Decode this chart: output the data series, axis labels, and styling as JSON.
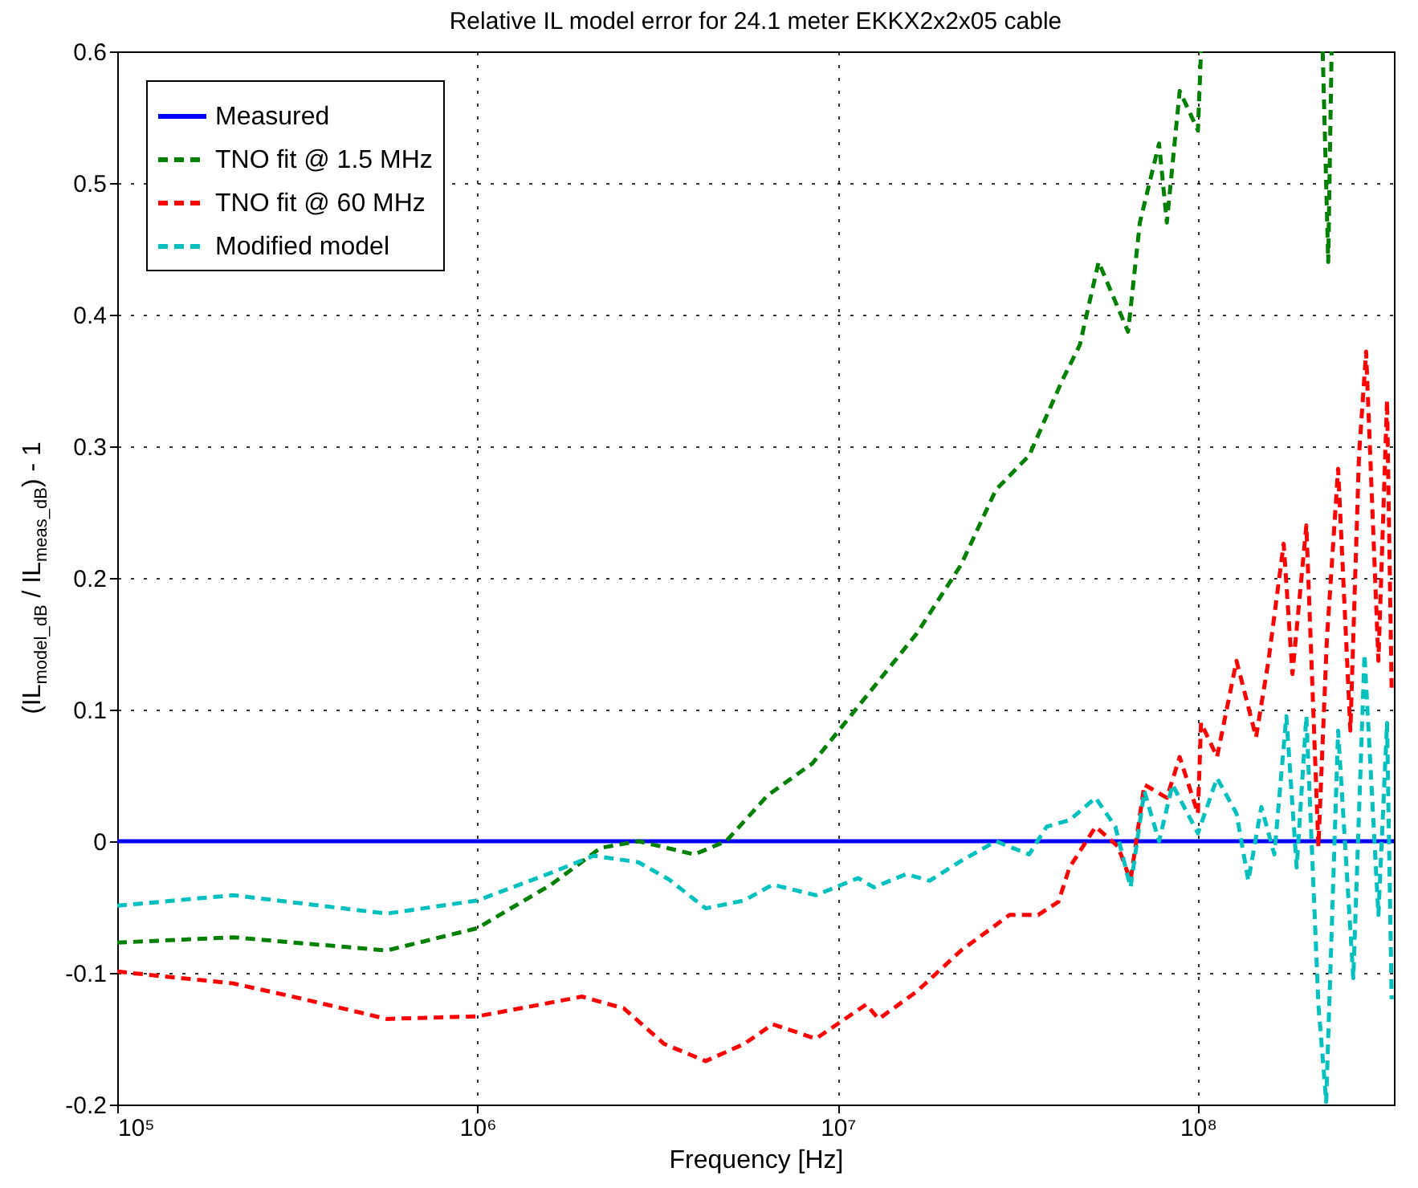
{
  "chart_data": {
    "type": "line",
    "title": "Relative IL model error for 24.1 meter EKKX2x2x05 cable",
    "xlabel": "Frequency [Hz]",
    "ylabel": "(IL$_{model_dB}$ / IL$_{meas_dB}$) - 1",
    "log": "x",
    "grid": true,
    "legend": "top left",
    "xlim": [
      100000,
      350000000
    ],
    "xticks": [
      {
        "value": 100000,
        "label": "10⁵"
      },
      {
        "value": 1000000,
        "label": "10⁶"
      },
      {
        "value": 10000000,
        "label": "10⁷"
      },
      {
        "value": 100000000,
        "label": "10⁸"
      }
    ],
    "ylim": [
      -0.2,
      0.6
    ],
    "yticks": [
      -0.2,
      -0.1,
      0,
      0.1,
      0.2,
      0.3,
      0.4,
      0.5,
      0.6
    ],
    "series": [
      {
        "name": "Measured",
        "color": "#0000ff",
        "line_style": "solid",
        "x": [
          100000,
          350000000
        ],
        "values": [
          0,
          0
        ]
      },
      {
        "name": "TNO fit @ 1.5 MHz",
        "color": "#008000",
        "line_style": "dashed",
        "x": [
          100000,
          210000,
          560000,
          1000000,
          1600000,
          2200000,
          2800000,
          4000000,
          4900000,
          6400000,
          8500000,
          12000000,
          16600000,
          22000000,
          27500000,
          34000000,
          42000000,
          47000000,
          53000000,
          64000000,
          69000000,
          78000000,
          82000000,
          89000000,
          100000000,
          102000000,
          103000000,
          222000000,
          230000000,
          235000000
        ],
        "values": [
          -0.077,
          -0.073,
          -0.083,
          -0.066,
          -0.033,
          -0.005,
          0,
          -0.01,
          0,
          0.035,
          0.059,
          0.11,
          0.158,
          0.21,
          0.267,
          0.293,
          0.35,
          0.377,
          0.44,
          0.387,
          0.47,
          0.53,
          0.47,
          0.57,
          0.54,
          0.6,
          null,
          0.6,
          0.44,
          0.6
        ]
      },
      {
        "name": "TNO fit @ 60 MHz",
        "color": "#ff0000",
        "line_style": "dashed",
        "x": [
          100000,
          210000,
          330000,
          560000,
          1000000,
          1500000,
          1950000,
          2550000,
          3300000,
          4300000,
          5500000,
          6600000,
          8700000,
          12000000,
          13000000,
          16600000,
          22000000,
          30000000,
          36000000,
          41000000,
          44000000,
          52000000,
          60000000,
          65000000,
          71000000,
          82000000,
          89000000,
          100000000,
          102000000,
          113000000,
          128000000,
          145000000,
          157000000,
          173000000,
          183000000,
          200000000,
          216000000,
          228000000,
          245000000,
          265000000,
          280000000,
          293000000,
          317000000,
          335000000,
          345000000
        ],
        "values": [
          -0.099,
          -0.108,
          -0.12,
          -0.135,
          -0.133,
          -0.124,
          -0.118,
          -0.127,
          -0.154,
          -0.167,
          -0.154,
          -0.139,
          -0.15,
          -0.124,
          -0.135,
          -0.114,
          -0.083,
          -0.056,
          -0.056,
          -0.046,
          -0.02,
          0.011,
          -0.004,
          -0.03,
          0.043,
          0.033,
          0.064,
          0.021,
          0.09,
          0.064,
          0.137,
          0.079,
          0.137,
          0.226,
          0.127,
          0.24,
          -0.004,
          0.153,
          0.283,
          0.084,
          0.293,
          0.372,
          0.137,
          0.335,
          0.115
        ]
      },
      {
        "name": "Modified model",
        "color": "#00bfbf",
        "line_style": "dashed",
        "x": [
          100000,
          210000,
          560000,
          1000000,
          1600000,
          2100000,
          2800000,
          3400000,
          4300000,
          5500000,
          6600000,
          8700000,
          11400000,
          12600000,
          15500000,
          18000000,
          22000000,
          27500000,
          34000000,
          38000000,
          44000000,
          52000000,
          59000000,
          65000000,
          71000000,
          78000000,
          85000000,
          100000000,
          113000000,
          128000000,
          138000000,
          150000000,
          163000000,
          176000000,
          188000000,
          200000000,
          216000000,
          227000000,
          245000000,
          270000000,
          290000000,
          317000000,
          335000000,
          345000000
        ],
        "values": [
          -0.049,
          -0.041,
          -0.055,
          -0.045,
          -0.024,
          -0.011,
          -0.016,
          -0.029,
          -0.051,
          -0.045,
          -0.033,
          -0.041,
          -0.028,
          -0.035,
          -0.025,
          -0.03,
          -0.015,
          0,
          -0.01,
          0.011,
          0.016,
          0.033,
          0.011,
          -0.035,
          0.038,
          0,
          0.043,
          0.006,
          0.048,
          0.021,
          -0.03,
          0.026,
          -0.01,
          0.095,
          -0.02,
          0.095,
          -0.124,
          -0.198,
          0.084,
          -0.104,
          0.142,
          -0.056,
          0.09,
          -0.12
        ]
      }
    ]
  }
}
